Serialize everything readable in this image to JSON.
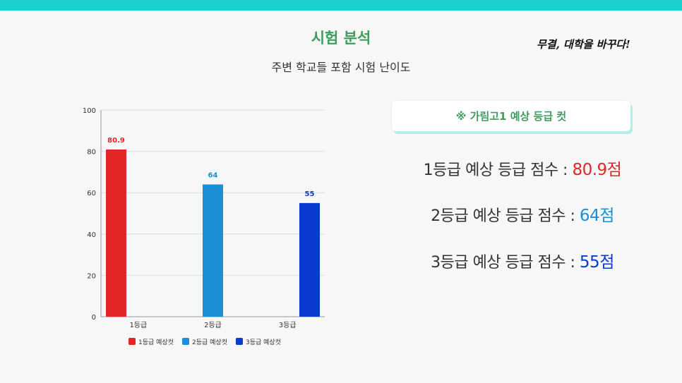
{
  "page": {
    "title": "시험 분석",
    "subtitle": "주변 학교들 포함 시험 난이도",
    "slogan": "무결, 대학을 바꾸다!"
  },
  "panel": {
    "heading": "※ 가림고1 예상 등급 컷"
  },
  "scores": [
    {
      "label": "1등급 예상 등급 점수 : ",
      "value": "80.9점",
      "color": "#e22626"
    },
    {
      "label": "2등급 예상 등급 점수 : ",
      "value": "64점",
      "color": "#1a8fd6"
    },
    {
      "label": "3등급 예상 등급 점수 : ",
      "value": "55점",
      "color": "#0a3bd1"
    }
  ],
  "chart_data": {
    "type": "bar",
    "categories": [
      "1등급",
      "2등급",
      "3등급"
    ],
    "series": [
      {
        "name": "1등급 예상컷",
        "values": [
          80.9,
          null,
          null
        ],
        "color": "#e22626"
      },
      {
        "name": "2등급 예상컷",
        "values": [
          null,
          64,
          null
        ],
        "color": "#1a8fd6"
      },
      {
        "name": "3등급 예상컷",
        "values": [
          null,
          null,
          55
        ],
        "color": "#0a3bd1"
      }
    ],
    "data_labels": [
      "80.9",
      "64",
      "55"
    ],
    "yticks": [
      "0",
      "20",
      "40",
      "60",
      "80",
      "100"
    ],
    "ylim": [
      0,
      100
    ],
    "grid": true,
    "legend": "bottom"
  }
}
